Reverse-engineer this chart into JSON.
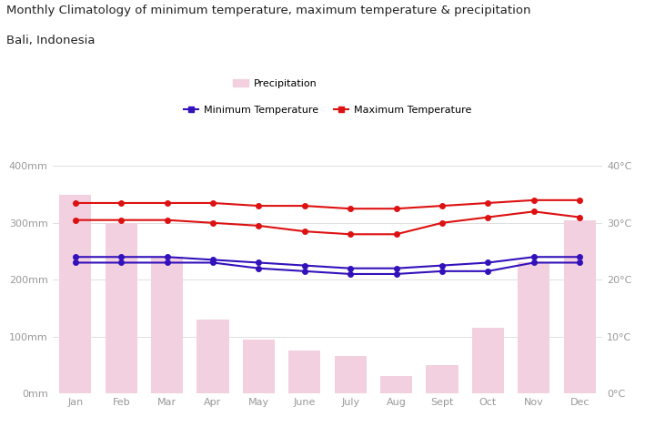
{
  "months": [
    "Jan",
    "Feb",
    "Mar",
    "Apr",
    "May",
    "June",
    "July",
    "Aug",
    "Sept",
    "Oct",
    "Nov",
    "Dec"
  ],
  "precipitation": [
    350,
    300,
    240,
    130,
    95,
    75,
    65,
    30,
    50,
    115,
    230,
    305
  ],
  "max_temp_high": [
    33.5,
    33.5,
    33.5,
    33.5,
    33.0,
    33.0,
    32.5,
    32.5,
    33.0,
    33.5,
    34.0,
    34.0
  ],
  "min_temp_high": [
    24.0,
    24.0,
    24.0,
    23.5,
    23.0,
    22.5,
    22.0,
    22.0,
    22.5,
    23.0,
    24.0,
    24.0
  ],
  "max_temp_low": [
    30.5,
    30.5,
    30.5,
    30.0,
    29.5,
    28.5,
    28.0,
    28.0,
    30.0,
    31.0,
    32.0,
    31.0
  ],
  "min_temp_low": [
    23.0,
    23.0,
    23.0,
    23.0,
    22.0,
    21.5,
    21.0,
    21.0,
    21.5,
    21.5,
    23.0,
    23.0
  ],
  "title_line1": "Monthly Climatology of minimum temperature, maximum temperature & precipitation",
  "title_line2": "Bali, Indonesia",
  "precip_color": "#f2d0df",
  "max_temp_color": "#dd1111",
  "min_temp_color": "#3311bb",
  "background_color": "#ffffff",
  "grid_color": "#e0e0e0",
  "ylim_left": [
    0,
    400
  ],
  "ylim_right": [
    0,
    40
  ],
  "yticks_left": [
    0,
    100,
    200,
    300,
    400
  ],
  "yticks_right": [
    0,
    10,
    20,
    30,
    40
  ],
  "ytick_labels_left": [
    "0mm",
    "100mm",
    "200mm",
    "300mm",
    "400mm"
  ],
  "ytick_labels_right": [
    "0°C",
    "10°C",
    "20°C",
    "30°C",
    "40°C"
  ],
  "legend_precip_label": "Precipitation",
  "legend_min_label": "Minimum Temperature",
  "legend_max_label": "Maximum Temperature"
}
